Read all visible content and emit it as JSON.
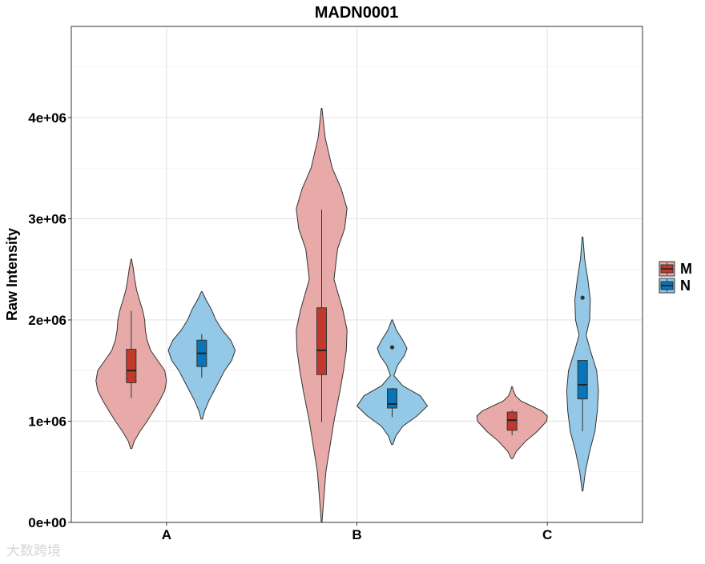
{
  "chart_data": {
    "type": "violin",
    "title": "MADN0001",
    "xlabel": "",
    "ylabel": "Raw Intensity",
    "categories": [
      "A",
      "B",
      "C"
    ],
    "ylim": [
      0,
      4900000
    ],
    "yticks": [
      0,
      1000000,
      2000000,
      3000000,
      4000000
    ],
    "ytick_labels": [
      "0e+00",
      "1e+06",
      "2e+06",
      "3e+06",
      "4e+06"
    ],
    "grid": true,
    "legend_position": "right",
    "series": [
      {
        "name": "M",
        "violin_color": "#e8aaa8",
        "box_color": "#c0392b",
        "groups": [
          {
            "category": "A",
            "min": 1230000,
            "q1": 1380000,
            "median": 1500000,
            "q3": 1710000,
            "max": 2090000,
            "violin_range": [
              730000,
              2600000
            ],
            "outliers": [],
            "density": [
              [
                730000,
                0.02
              ],
              [
                800000,
                0.08
              ],
              [
                900000,
                0.25
              ],
              [
                1000000,
                0.45
              ],
              [
                1100000,
                0.63
              ],
              [
                1200000,
                0.8
              ],
              [
                1300000,
                0.95
              ],
              [
                1400000,
                1.0
              ],
              [
                1500000,
                0.95
              ],
              [
                1600000,
                0.75
              ],
              [
                1700000,
                0.55
              ],
              [
                1800000,
                0.45
              ],
              [
                1900000,
                0.4
              ],
              [
                2000000,
                0.38
              ],
              [
                2100000,
                0.32
              ],
              [
                2200000,
                0.23
              ],
              [
                2300000,
                0.15
              ],
              [
                2400000,
                0.1
              ],
              [
                2500000,
                0.06
              ],
              [
                2600000,
                0.01
              ]
            ]
          },
          {
            "category": "B",
            "min": 990000,
            "q1": 1460000,
            "median": 1700000,
            "q3": 2120000,
            "max": 3090000,
            "violin_range": [
              0,
              4090000
            ],
            "outliers": [],
            "density": [
              [
                0,
                0.01
              ],
              [
                500000,
                0.12
              ],
              [
                1000000,
                0.35
              ],
              [
                1300000,
                0.52
              ],
              [
                1500000,
                0.62
              ],
              [
                1700000,
                0.7
              ],
              [
                1900000,
                0.72
              ],
              [
                2100000,
                0.6
              ],
              [
                2400000,
                0.35
              ],
              [
                2700000,
                0.45
              ],
              [
                2900000,
                0.65
              ],
              [
                3100000,
                0.72
              ],
              [
                3300000,
                0.55
              ],
              [
                3500000,
                0.3
              ],
              [
                3800000,
                0.1
              ],
              [
                4090000,
                0.01
              ]
            ]
          },
          {
            "category": "C",
            "min": 860000,
            "q1": 910000,
            "median": 1010000,
            "q3": 1090000,
            "max": 1110000,
            "violin_range": [
              630000,
              1340000
            ],
            "outliers": [],
            "density": [
              [
                630000,
                0.02
              ],
              [
                700000,
                0.12
              ],
              [
                800000,
                0.38
              ],
              [
                900000,
                0.72
              ],
              [
                1000000,
                0.98
              ],
              [
                1050000,
                1.0
              ],
              [
                1100000,
                0.85
              ],
              [
                1150000,
                0.55
              ],
              [
                1200000,
                0.25
              ],
              [
                1250000,
                0.1
              ],
              [
                1300000,
                0.04
              ],
              [
                1340000,
                0.01
              ]
            ]
          }
        ]
      },
      {
        "name": "N",
        "violin_color": "#93c8e6",
        "box_color": "#0a74b8",
        "groups": [
          {
            "category": "A",
            "min": 1430000,
            "q1": 1540000,
            "median": 1670000,
            "q3": 1800000,
            "max": 1860000,
            "violin_range": [
              1020000,
              2280000
            ],
            "outliers": [],
            "density": [
              [
                1020000,
                0.02
              ],
              [
                1100000,
                0.08
              ],
              [
                1200000,
                0.2
              ],
              [
                1300000,
                0.35
              ],
              [
                1400000,
                0.5
              ],
              [
                1500000,
                0.65
              ],
              [
                1600000,
                0.85
              ],
              [
                1700000,
                0.95
              ],
              [
                1800000,
                0.82
              ],
              [
                1900000,
                0.58
              ],
              [
                2000000,
                0.4
              ],
              [
                2100000,
                0.28
              ],
              [
                2200000,
                0.12
              ],
              [
                2280000,
                0.01
              ]
            ]
          },
          {
            "category": "B",
            "min": 1040000,
            "q1": 1130000,
            "median": 1170000,
            "q3": 1320000,
            "max": 1330000,
            "violin_range": [
              770000,
              2000000
            ],
            "outliers": [
              1730000
            ],
            "density": [
              [
                770000,
                0.02
              ],
              [
                850000,
                0.1
              ],
              [
                950000,
                0.3
              ],
              [
                1050000,
                0.7
              ],
              [
                1150000,
                1.0
              ],
              [
                1250000,
                0.8
              ],
              [
                1350000,
                0.3
              ],
              [
                1450000,
                0.05
              ],
              [
                1550000,
                0.15
              ],
              [
                1650000,
                0.35
              ],
              [
                1720000,
                0.42
              ],
              [
                1800000,
                0.3
              ],
              [
                1900000,
                0.12
              ],
              [
                2000000,
                0.01
              ]
            ]
          },
          {
            "category": "C",
            "min": 900000,
            "q1": 1220000,
            "median": 1360000,
            "q3": 1600000,
            "max": 1600000,
            "violin_range": [
              310000,
              2820000
            ],
            "outliers": [
              2220000
            ],
            "density": [
              [
                310000,
                0.01
              ],
              [
                500000,
                0.08
              ],
              [
                700000,
                0.2
              ],
              [
                900000,
                0.35
              ],
              [
                1100000,
                0.42
              ],
              [
                1300000,
                0.45
              ],
              [
                1500000,
                0.4
              ],
              [
                1700000,
                0.22
              ],
              [
                1850000,
                0.1
              ],
              [
                2000000,
                0.2
              ],
              [
                2200000,
                0.22
              ],
              [
                2400000,
                0.15
              ],
              [
                2600000,
                0.06
              ],
              [
                2820000,
                0.01
              ]
            ]
          }
        ]
      }
    ],
    "legend": [
      {
        "label": "M",
        "color": "#e8aaa8",
        "box_color": "#c0392b"
      },
      {
        "label": "N",
        "color": "#93c8e6",
        "box_color": "#0a74b8"
      }
    ]
  },
  "watermark": "大数跨境"
}
